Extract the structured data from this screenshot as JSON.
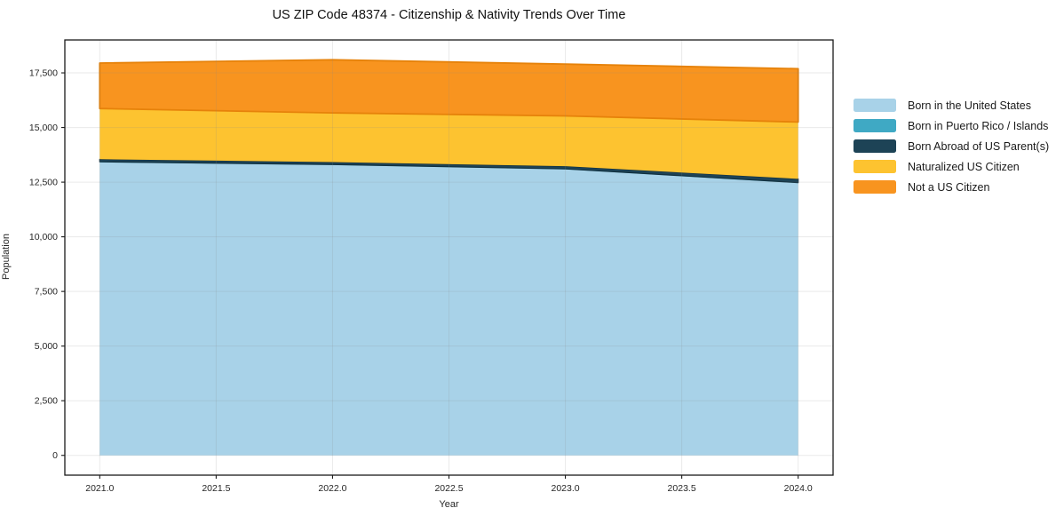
{
  "chart_data": {
    "type": "area",
    "stacked": true,
    "title": "US ZIP Code 48374 - Citizenship & Nativity Trends Over Time",
    "xlabel": "Year",
    "ylabel": "Population",
    "x": [
      2021,
      2022,
      2023,
      2024
    ],
    "series": [
      {
        "name": "Born in the United States",
        "color": "#a8d2e8",
        "edge": null,
        "edge_width": 0,
        "values": [
          13400,
          13280,
          13080,
          12450
        ]
      },
      {
        "name": "Born in Puerto Rico / Islands",
        "color": "#3fa9c4",
        "edge": null,
        "edge_width": 0,
        "values": [
          30,
          25,
          25,
          30
        ]
      },
      {
        "name": "Born Abroad of US Parent(s)",
        "color": "#1d4356",
        "edge": "#12303f",
        "edge_width": 1.2,
        "values": [
          120,
          115,
          125,
          170
        ]
      },
      {
        "name": "Naturalized US Citizen",
        "color": "#fdc330",
        "edge": null,
        "edge_width": 0,
        "values": [
          2320,
          2250,
          2300,
          2600
        ]
      },
      {
        "name": "Not a US Citizen",
        "color": "#f8941f",
        "edge": "#e6820a",
        "edge_width": 1.8,
        "values": [
          2080,
          2430,
          2370,
          2440
        ]
      }
    ],
    "cumulative_tops": {
      "2021": [
        13400,
        13430,
        13550,
        15870,
        17950
      ],
      "2022": [
        13280,
        13305,
        13420,
        15670,
        18100
      ],
      "2023": [
        13080,
        13105,
        13230,
        15530,
        17900
      ],
      "2024": [
        12450,
        12480,
        12650,
        15250,
        17690
      ]
    },
    "xticks": {
      "values": [
        2021,
        2021.5,
        2022,
        2022.5,
        2023,
        2023.5,
        2024
      ],
      "labels": [
        "2021.0",
        "2021.5",
        "2022.0",
        "2022.5",
        "2023.0",
        "2023.5",
        "2024.0"
      ]
    },
    "yticks": {
      "values": [
        0,
        2500,
        5000,
        7500,
        10000,
        12500,
        15000,
        17500
      ],
      "labels": [
        "0",
        "2,500",
        "5,000",
        "7,500",
        "10,000",
        "12,500",
        "15,000",
        "17,500"
      ]
    },
    "xlim": [
      2020.85,
      2024.15
    ],
    "ylim": [
      -905,
      19005
    ],
    "grid": true,
    "legend_position": "outside-right",
    "frame_color": "#1a1a1a",
    "grid_color": "#888888",
    "background": "#ffffff"
  }
}
